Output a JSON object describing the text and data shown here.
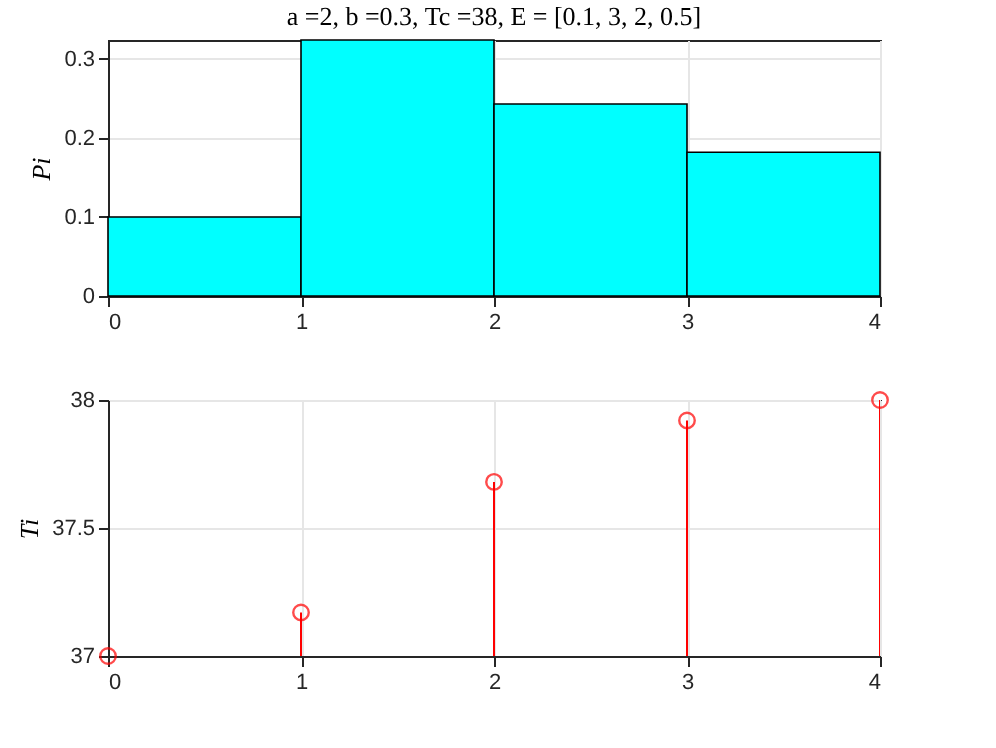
{
  "chart_data": [
    {
      "type": "histogram",
      "title": "a =2, b =0.3, Tc =38, E = [0.1, 3, 2, 0.5]",
      "ylabel": "Pi",
      "bins": [
        0,
        1,
        2,
        3,
        4
      ],
      "values": [
        0.1,
        0.324,
        0.243,
        0.182
      ],
      "color": "#00ffff",
      "xlim": [
        0,
        4
      ],
      "xticks": [
        0,
        1,
        2,
        3,
        4
      ],
      "ylim": [
        0,
        0.324
      ],
      "yticks": [
        0,
        0.1,
        0.2,
        0.3
      ],
      "grid": true
    },
    {
      "type": "lollipop",
      "ylabel": "Ti",
      "x": [
        0,
        1,
        2,
        3,
        4
      ],
      "values": [
        37.0,
        37.17,
        37.68,
        37.92,
        38.0
      ],
      "color": "#ff0000",
      "marker": "circle",
      "xlim": [
        0,
        4
      ],
      "xticks": [
        0,
        1,
        2,
        3,
        4
      ],
      "ylim": [
        37,
        38
      ],
      "yticks": [
        37,
        37.5,
        38
      ],
      "grid": true
    }
  ]
}
